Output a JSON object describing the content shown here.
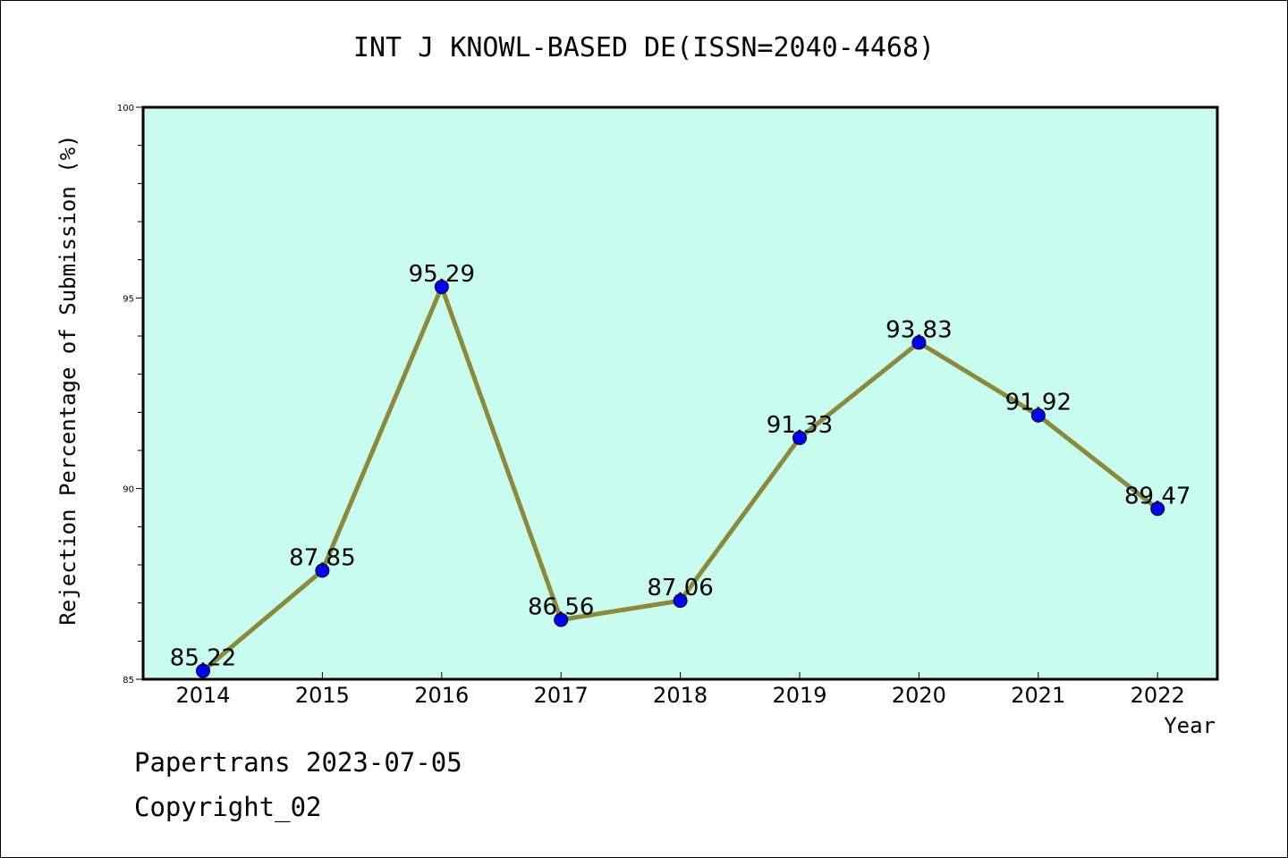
{
  "title": "INT J KNOWL-BASED DE(ISSN=2040-4468)",
  "footer": {
    "line1": "Papertrans 2023-07-05",
    "line2": "Copyright_02"
  },
  "colors": {
    "plot_background": "#c8fcee",
    "line": "#8b8a3a",
    "marker": "#0000ff"
  },
  "chart_data": {
    "type": "line",
    "title": "INT J KNOWL-BASED DE(ISSN=2040-4468)",
    "xlabel": "Year",
    "ylabel": "Rejection Percentage of Submission (%)",
    "categories": [
      "2014",
      "2015",
      "2016",
      "2017",
      "2018",
      "2019",
      "2020",
      "2021",
      "2022"
    ],
    "values": [
      85.22,
      87.85,
      95.29,
      86.56,
      87.06,
      91.33,
      93.83,
      91.92,
      89.47
    ],
    "data_labels": [
      "85.22",
      "87.85",
      "95.29",
      "86.56",
      "87.06",
      "91.33",
      "93.83",
      "91.92",
      "89.47"
    ],
    "ylim": [
      85,
      100
    ],
    "yticks": [
      "85",
      "90",
      "95",
      "100"
    ],
    "grid": false,
    "legend": "none"
  }
}
